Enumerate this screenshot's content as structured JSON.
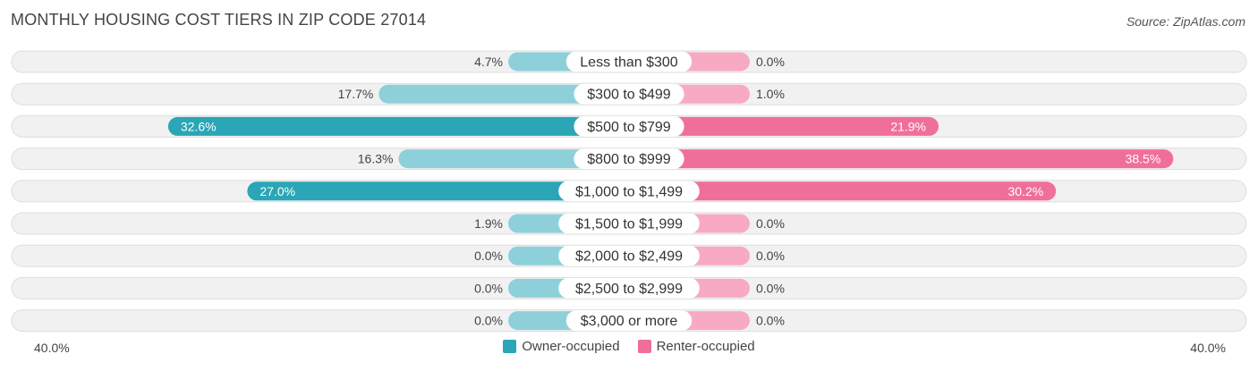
{
  "title": "MONTHLY HOUSING COST TIERS IN ZIP CODE 27014",
  "source": "Source: ZipAtlas.com",
  "colors": {
    "owner_dark": "#2aa6b6",
    "owner_light": "#8dd0da",
    "renter_dark": "#f06f98",
    "renter_light": "#f8aac3",
    "row_bg": "#f1f1f1",
    "row_border": "#dedede"
  },
  "axis": {
    "left_label": "40.0%",
    "right_label": "40.0%"
  },
  "legend": {
    "owner_label": "Owner-occupied",
    "renter_label": "Renter-occupied"
  },
  "chart_data": {
    "type": "bar",
    "orientation": "horizontal-diverging",
    "xlim": [
      -40,
      40
    ],
    "categories": [
      "Less than $300",
      "$300 to $499",
      "$500 to $799",
      "$800 to $999",
      "$1,000 to $1,499",
      "$1,500 to $1,999",
      "$2,000 to $2,499",
      "$2,500 to $2,999",
      "$3,000 or more"
    ],
    "series": [
      {
        "name": "Owner-occupied",
        "values": [
          4.7,
          17.7,
          32.6,
          16.3,
          27.0,
          1.9,
          0.0,
          0.0,
          0.0
        ],
        "labels": [
          "4.7%",
          "17.7%",
          "32.6%",
          "16.3%",
          "27.0%",
          "1.9%",
          "0.0%",
          "0.0%",
          "0.0%"
        ]
      },
      {
        "name": "Renter-occupied",
        "values": [
          0.0,
          1.0,
          21.9,
          38.5,
          30.2,
          0.0,
          0.0,
          0.0,
          0.0
        ],
        "labels": [
          "0.0%",
          "1.0%",
          "21.9%",
          "38.5%",
          "30.2%",
          "0.0%",
          "0.0%",
          "0.0%",
          "0.0%"
        ]
      }
    ]
  }
}
